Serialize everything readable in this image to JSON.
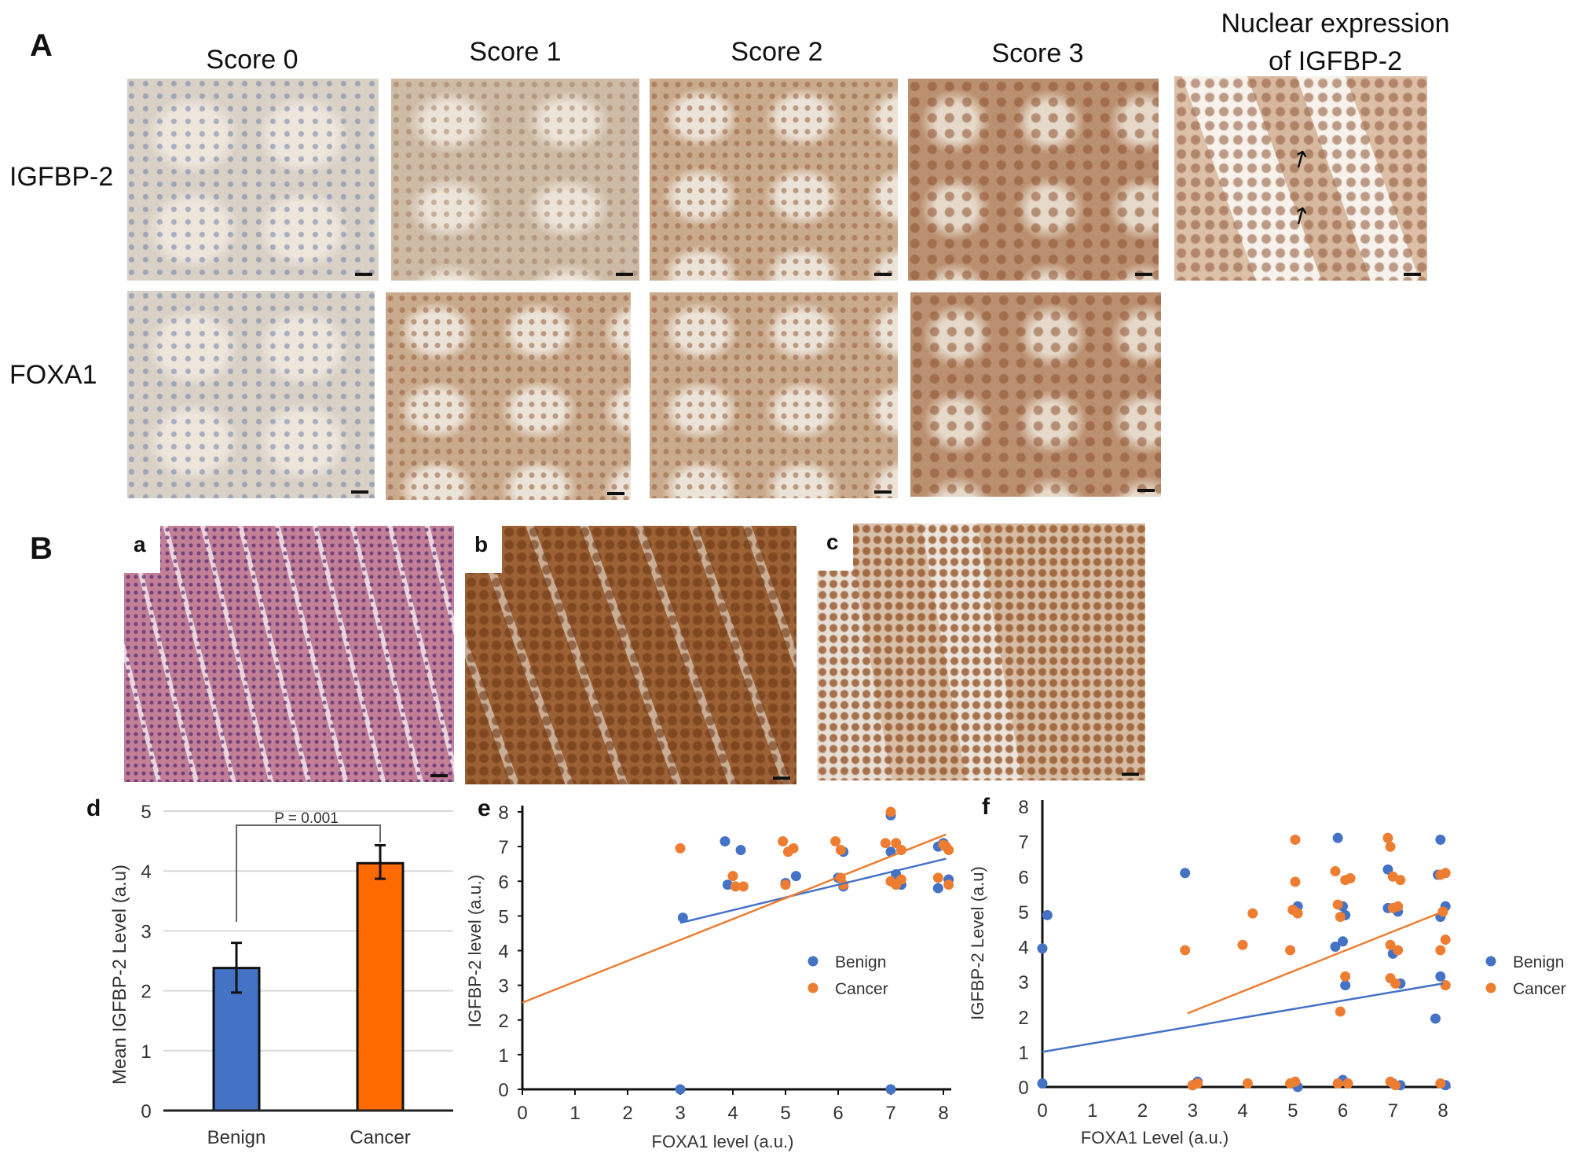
{
  "panel_A": {
    "letter": "A",
    "columns": [
      "Score 0",
      "Score 1",
      "Score 2",
      "Score 3"
    ],
    "nuclear_title_line1": "Nuclear expression",
    "nuclear_title_line2": "of IGFBP-2",
    "rows": [
      "IGFBP-2",
      "FOXA1"
    ]
  },
  "panel_B": {
    "letter": "B",
    "sublabels": [
      "a",
      "b",
      "c"
    ]
  },
  "chart_labels": {
    "d": "d",
    "e": "e",
    "f": "f"
  },
  "colors": {
    "benign": "#4472c4",
    "cancer": "#ff6a00",
    "cancer_scatter": "#ed7d31"
  },
  "chart_data": [
    {
      "id": "d",
      "type": "bar",
      "categories": [
        "Benign",
        "Cancer"
      ],
      "values": [
        2.38,
        4.13
      ],
      "error": [
        [
          1.97,
          2.8
        ],
        [
          3.87,
          4.43
        ]
      ],
      "ylabel": "Mean IGFBP-2 Level (a.u)",
      "ylim": [
        0,
        5
      ],
      "yticks": [
        "0",
        "1",
        "2",
        "3",
        "4",
        "5"
      ],
      "annotation": "P = 0.001",
      "grid": true
    },
    {
      "id": "e",
      "type": "scatter",
      "xlabel": "FOXA1 level (a.u.)",
      "ylabel": "IGFBP-2 level (a.u.)",
      "xlim": [
        0,
        8
      ],
      "ylim": [
        0,
        8
      ],
      "xticks": [
        "0",
        "1",
        "2",
        "3",
        "4",
        "5",
        "6",
        "7",
        "8"
      ],
      "yticks": [
        "0",
        "1",
        "2",
        "3",
        "4",
        "5",
        "6",
        "7",
        "8"
      ],
      "legend": "center-right",
      "series": [
        {
          "name": "Benign",
          "points": [
            [
              3,
              0
            ],
            [
              7,
              0
            ],
            [
              3.05,
              4.95
            ],
            [
              3.85,
              7.15
            ],
            [
              4.15,
              6.9
            ],
            [
              3.9,
              5.9
            ],
            [
              5.2,
              6.15
            ],
            [
              5,
              5.95
            ],
            [
              6.1,
              6.85
            ],
            [
              6,
              6.1
            ],
            [
              6.1,
              5.85
            ],
            [
              7,
              6.85
            ],
            [
              7,
              7.9
            ],
            [
              7,
              6
            ],
            [
              7.1,
              6.2
            ],
            [
              7.2,
              5.9
            ],
            [
              8,
              7.1
            ],
            [
              7.9,
              7
            ],
            [
              8.1,
              6.05
            ],
            [
              7.9,
              5.8
            ]
          ],
          "trend": [
            [
              3,
              4.8
            ],
            [
              8.05,
              6.65
            ]
          ]
        },
        {
          "name": "Cancer",
          "points": [
            [
              3,
              6.95
            ],
            [
              4,
              6.15
            ],
            [
              4.05,
              5.85
            ],
            [
              4.2,
              5.85
            ],
            [
              4.95,
              7.15
            ],
            [
              5.05,
              6.85
            ],
            [
              5.15,
              6.95
            ],
            [
              5,
              5.9
            ],
            [
              5.95,
              7.15
            ],
            [
              6.05,
              6.9
            ],
            [
              6.05,
              6.1
            ],
            [
              6.1,
              5.9
            ],
            [
              7,
              8
            ],
            [
              6.9,
              7.1
            ],
            [
              7.1,
              7.1
            ],
            [
              7.2,
              6.9
            ],
            [
              7,
              6
            ],
            [
              7.1,
              5.9
            ],
            [
              7.2,
              6.05
            ],
            [
              8.05,
              7
            ],
            [
              8.1,
              6.9
            ],
            [
              7.9,
              6.1
            ],
            [
              8.1,
              5.9
            ],
            [
              8,
              7.05
            ]
          ],
          "trend": [
            [
              0,
              2.5
            ],
            [
              8.05,
              7.35
            ]
          ]
        }
      ]
    },
    {
      "id": "f",
      "type": "scatter",
      "xlabel": "FOXA1 Level (a.u.)",
      "ylabel": "IGFBP-2 Level (a.u)",
      "xlim": [
        0,
        8
      ],
      "ylim": [
        0,
        8
      ],
      "xticks": [
        "0",
        "1",
        "2",
        "3",
        "4",
        "5",
        "6",
        "7",
        "8"
      ],
      "yticks": [
        "0",
        "1",
        "2",
        "3",
        "4",
        "5",
        "6",
        "7",
        "8"
      ],
      "legend": "right",
      "series": [
        {
          "name": "Benign",
          "points": [
            [
              0,
              0.1
            ],
            [
              0,
              3.95
            ],
            [
              0.1,
              4.9
            ],
            [
              2.85,
              6.1
            ],
            [
              3,
              0.05
            ],
            [
              3.1,
              0.15
            ],
            [
              5.1,
              5.15
            ],
            [
              5,
              0.1
            ],
            [
              5.1,
              0
            ],
            [
              5.9,
              7.1
            ],
            [
              5.85,
              4
            ],
            [
              6,
              4.15
            ],
            [
              6.05,
              4.9
            ],
            [
              6.05,
              2.9
            ],
            [
              6,
              5.15
            ],
            [
              6.1,
              0.1
            ],
            [
              6,
              0.2
            ],
            [
              6.9,
              6.2
            ],
            [
              6.9,
              5.1
            ],
            [
              7.1,
              5
            ],
            [
              7,
              3.8
            ],
            [
              7.15,
              2.95
            ],
            [
              7,
              0.1
            ],
            [
              7.15,
              0.05
            ],
            [
              7.95,
              7.05
            ],
            [
              7.85,
              1.95
            ],
            [
              7.95,
              3.15
            ],
            [
              8.05,
              5.15
            ],
            [
              7.95,
              4.85
            ],
            [
              8.05,
              2.9
            ],
            [
              8.05,
              0.05
            ],
            [
              7.9,
              6.05
            ]
          ],
          "trend": [
            [
              0,
              1
            ],
            [
              8,
              2.95
            ]
          ]
        },
        {
          "name": "Cancer",
          "points": [
            [
              2.85,
              3.9
            ],
            [
              3,
              0.05
            ],
            [
              3.1,
              0.1
            ],
            [
              4.2,
              4.95
            ],
            [
              4,
              4.05
            ],
            [
              4.1,
              0.1
            ],
            [
              4.95,
              3.9
            ],
            [
              5.05,
              5.85
            ],
            [
              5.05,
              7.05
            ],
            [
              5,
              5.05
            ],
            [
              5.1,
              4.95
            ],
            [
              5.05,
              0.15
            ],
            [
              4.95,
              0.1
            ],
            [
              5.85,
              6.15
            ],
            [
              6.05,
              5.9
            ],
            [
              6.15,
              5.95
            ],
            [
              5.9,
              5.2
            ],
            [
              5.95,
              4.85
            ],
            [
              6.05,
              3.15
            ],
            [
              5.95,
              2.15
            ],
            [
              5.9,
              0.1
            ],
            [
              6.1,
              0.1
            ],
            [
              6.9,
              7.1
            ],
            [
              6.95,
              6.85
            ],
            [
              7,
              6
            ],
            [
              7.15,
              5.9
            ],
            [
              7,
              5.1
            ],
            [
              7.1,
              5.15
            ],
            [
              6.95,
              4.05
            ],
            [
              7.1,
              3.9
            ],
            [
              6.95,
              3.1
            ],
            [
              7.05,
              2.95
            ],
            [
              6.95,
              0.15
            ],
            [
              7.05,
              0.05
            ],
            [
              7.95,
              6.05
            ],
            [
              8.05,
              6.1
            ],
            [
              8.05,
              4.2
            ],
            [
              7.95,
              3.9
            ],
            [
              8,
              5
            ],
            [
              8.05,
              2.9
            ],
            [
              7.95,
              0.1
            ]
          ],
          "trend": [
            [
              2.9,
              2.1
            ],
            [
              8,
              5
            ]
          ]
        }
      ]
    }
  ]
}
